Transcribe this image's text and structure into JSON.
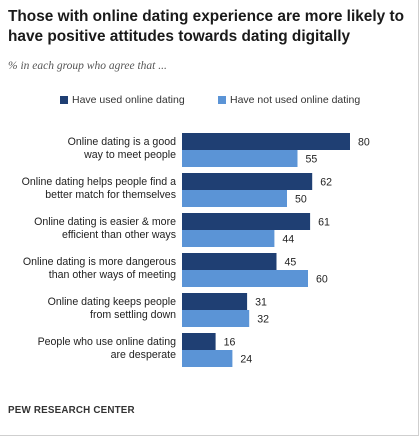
{
  "title": "Those with online dating experience are more likely to have positive attitudes towards dating digitally",
  "subtitle": "% in each group who agree that ...",
  "source": "PEW RESEARCH CENTER",
  "colors": {
    "used": "#1f3f73",
    "not_used": "#5b94d6"
  },
  "chart_data": {
    "type": "bar",
    "orientation": "horizontal",
    "categories": [
      [
        "Online dating is a good",
        "way to meet people"
      ],
      [
        "Online dating helps people find a",
        "better match for themselves"
      ],
      [
        "Online dating is easier & more",
        "efficient than other ways"
      ],
      [
        "Online dating is more dangerous",
        "than other ways of meeting"
      ],
      [
        "Online dating keeps people",
        "from settling down"
      ],
      [
        "People who use online dating",
        "are desperate"
      ]
    ],
    "series": [
      {
        "name": "Have used online dating",
        "values": [
          80,
          62,
          61,
          45,
          31,
          16
        ]
      },
      {
        "name": "Have not used online dating",
        "values": [
          55,
          50,
          44,
          60,
          32,
          24
        ]
      }
    ],
    "xlim": [
      0,
      100
    ],
    "legend": "top",
    "grid": false
  }
}
